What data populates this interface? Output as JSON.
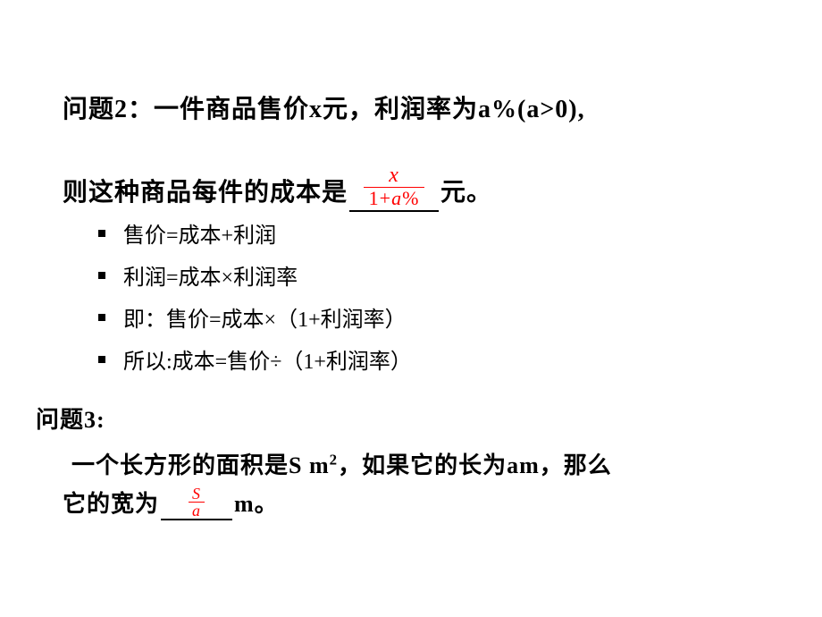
{
  "q2": {
    "line1": "问题2：一件商品售价x元，利润率为a%(a>0),",
    "line2_pre": "则这种商品每件的成本是",
    "line2_post": "元。",
    "frac": {
      "num": "x",
      "den_pre": "1",
      "den_plus": "+",
      "den_var": "a",
      "den_pct": "%"
    }
  },
  "bullets": {
    "b1": "售价=成本+利润",
    "b2": "利润=成本×利润率",
    "b3": "即：售价=成本×（1+利润率）",
    "b4": "所以:成本=售价÷（1+利润率）"
  },
  "q3": {
    "head": "问题3:",
    "line1_a": "一个长方形的面积是S m",
    "line1_b": "，如果它的长为am，那么",
    "sup": "2",
    "line2_pre": "它的宽为",
    "line2_post": "m。",
    "frac": {
      "num": "S",
      "den": "a"
    }
  },
  "colors": {
    "accent": "#ff0000",
    "text": "#000000",
    "bg": "#ffffff"
  },
  "fonts": {
    "body_pt": 26,
    "bullet_pt": 24,
    "frac_big_pt": 23,
    "frac_small_pt": 18
  }
}
